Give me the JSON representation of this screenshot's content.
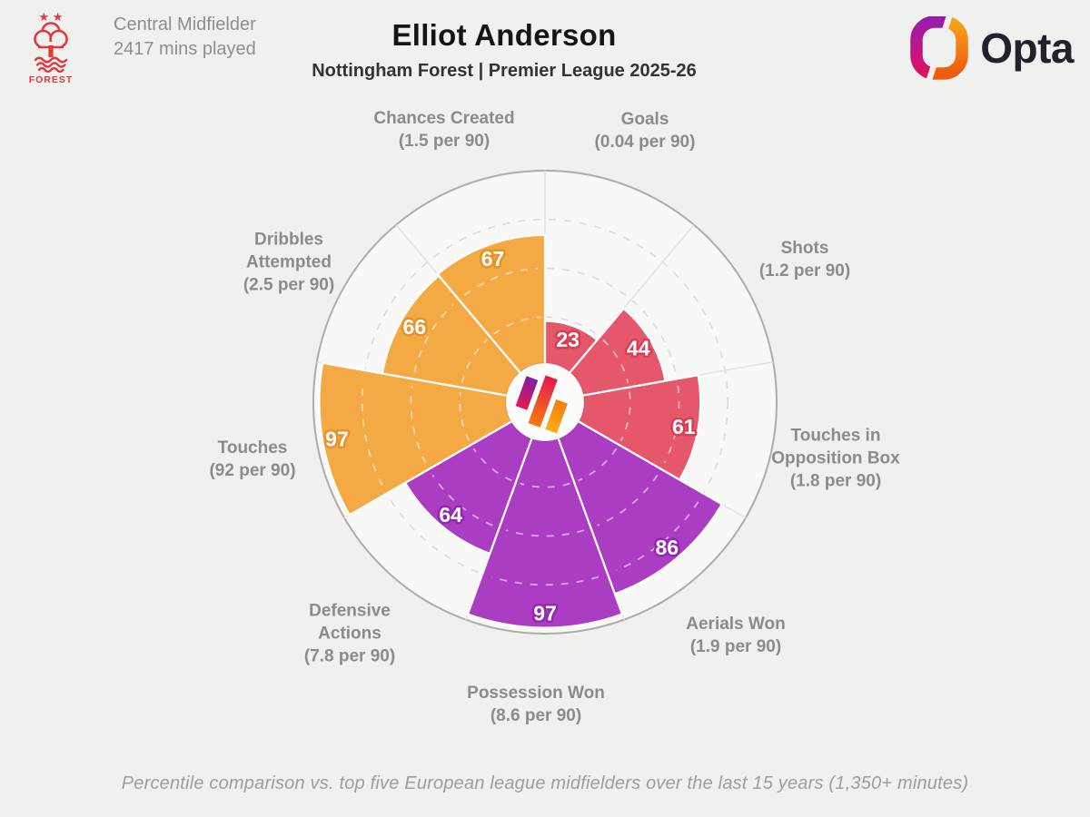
{
  "header": {
    "badge_label": "FOREST",
    "badge_stars": "★ ★",
    "position": "Central Midfielder",
    "minutes_played": "2417 mins played",
    "title": "Elliot Anderson",
    "subtitle": "Nottingham Forest | Premier League 2025-26",
    "brand_wordmark": "Opta"
  },
  "footer": {
    "caption": "Percentile comparison vs. top five European league midfielders over the last 15 years (1,350+ minutes)"
  },
  "chart_data": {
    "type": "pie",
    "subtype": "percentile-pizza",
    "direction": "clockwise-from-top",
    "slice_span_deg": 40,
    "value_range": [
      0,
      100
    ],
    "rings": [
      25,
      50,
      75,
      100
    ],
    "grid": "dashed-rings",
    "categories": [
      {
        "label": "Goals",
        "per90": "(0.04 per 90)",
        "value": 23,
        "group": "attacking"
      },
      {
        "label": "Shots",
        "per90": "(1.2 per 90)",
        "value": 44,
        "group": "attacking"
      },
      {
        "label": "Touches in Opposition Box",
        "per90": "(1.8 per 90)",
        "value": 61,
        "group": "attacking"
      },
      {
        "label": "Aerials Won",
        "per90": "(1.9 per 90)",
        "value": 86,
        "group": "defending"
      },
      {
        "label": "Possession Won",
        "per90": "(8.6 per 90)",
        "value": 97,
        "group": "defending"
      },
      {
        "label": "Defensive Actions",
        "per90": "(7.8 per 90)",
        "value": 64,
        "group": "defending"
      },
      {
        "label": "Touches",
        "per90": "(92 per 90)",
        "value": 97,
        "group": "possession"
      },
      {
        "label": "Dribbles Attempted",
        "per90": "(2.5 per 90)",
        "value": 66,
        "group": "possession"
      },
      {
        "label": "Chances Created",
        "per90": "(1.5 per 90)",
        "value": 67,
        "group": "possession"
      }
    ],
    "group_colors": {
      "attacking": {
        "fill": "#E5576B",
        "label_stroke": "#DA3D54"
      },
      "defending": {
        "fill": "#AB3DC2",
        "label_stroke": "#9526AE"
      },
      "possession": {
        "fill": "#F3A944",
        "label_stroke": "#E7922A"
      }
    },
    "style_colors": {
      "page_bg": "#F0F0EE",
      "chart_bg": "#F8F8F6",
      "outer_ring": "#ACACAA",
      "grid_dash": "#DBDBD9",
      "spoke": "#E3E3E1",
      "value_text": "#FFFFFF",
      "category_text": "#8B8B89",
      "forest_red": "#E0393C"
    }
  }
}
